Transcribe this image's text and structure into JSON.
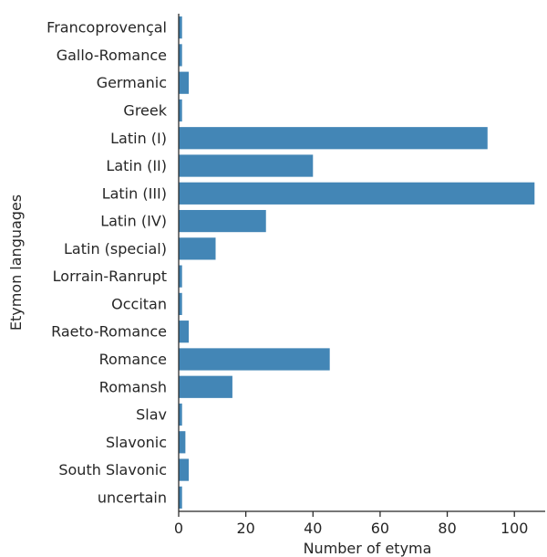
{
  "chart_data": {
    "type": "bar",
    "orientation": "horizontal",
    "title": "",
    "xlabel": "Number of etyma",
    "ylabel": "Etymon languages",
    "xlim": [
      0,
      107
    ],
    "xticks": [
      0,
      20,
      40,
      60,
      80,
      100
    ],
    "grid": false,
    "bar_color": "#4386b6",
    "categories": [
      "Francoprovençal",
      "Gallo-Romance",
      "Germanic",
      "Greek",
      "Latin (I)",
      "Latin (II)",
      "Latin (III)",
      "Latin (IV)",
      "Latin (special)",
      "Lorrain-Ranrupt",
      "Occitan",
      "Raeto-Romance",
      "Romance",
      "Romansh",
      "Slav",
      "Slavonic",
      "South Slavonic",
      "uncertain"
    ],
    "values": [
      1,
      1,
      3,
      1,
      92,
      40,
      106,
      26,
      11,
      1,
      1,
      3,
      45,
      16,
      1,
      2,
      3,
      1
    ]
  }
}
